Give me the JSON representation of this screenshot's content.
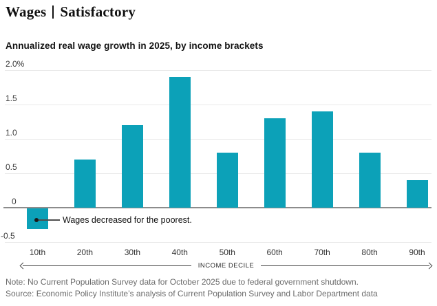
{
  "header": {
    "kicker": "Wages",
    "status": "Satisfactory"
  },
  "chart_data": {
    "type": "bar",
    "title": "Annualized real wage growth in 2025, by income brackets",
    "categories": [
      "10th",
      "20th",
      "30th",
      "40th",
      "50th",
      "60th",
      "70th",
      "80th",
      "90th"
    ],
    "values": [
      -0.3,
      0.7,
      1.2,
      1.9,
      0.8,
      1.3,
      1.4,
      0.8,
      0.4
    ],
    "unit": "percent",
    "y_ticks": [
      "2.0%",
      "1.5",
      "1.0",
      "0.5",
      "0",
      "-0.5"
    ],
    "y_tick_values": [
      2.0,
      1.5,
      1.0,
      0.5,
      0,
      -0.5
    ],
    "ylim": [
      -0.5,
      2.0
    ],
    "xlabel": "INCOME DECILE",
    "grid": true,
    "legend": "none",
    "bar_color": "#0ca1b8",
    "zero_line_color": "#8c8c8c",
    "gridline_color": "#e9e9e9",
    "annotation": "Wages decreased for the poorest."
  },
  "footer": {
    "note": "Note: No Current Population Survey data for October 2025 due to federal government shutdown.",
    "source": "Source: Economic Policy Institute’s analysis of Current Population Survey and Labor Department data"
  }
}
